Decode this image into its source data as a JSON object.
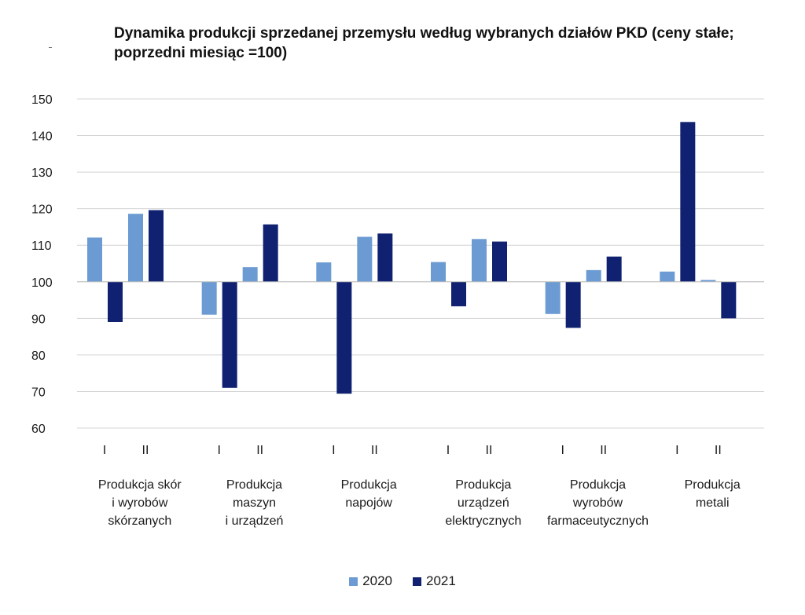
{
  "chart_data": {
    "type": "bar",
    "title": "Dynamika produkcji sprzedanej przemysłu według wybranych działów PKD (ceny stałe; poprzedni miesiąc =100)",
    "ylim": [
      60,
      150
    ],
    "yticks": [
      60,
      70,
      80,
      90,
      100,
      110,
      120,
      130,
      140,
      150
    ],
    "baseline": 100,
    "grid": true,
    "legend_position": "bottom-center",
    "groups": [
      {
        "label_lines": [
          "Produkcja skór",
          "i wyrobów",
          "skórzanych"
        ],
        "months": [
          "I",
          "II"
        ]
      },
      {
        "label_lines": [
          "Produkcja",
          "maszyn",
          "i urządzeń"
        ],
        "months": [
          "I",
          "II"
        ]
      },
      {
        "label_lines": [
          "Produkcja",
          "napojów"
        ],
        "months": [
          "I",
          "II"
        ]
      },
      {
        "label_lines": [
          "Produkcja",
          "urządzeń",
          "elektrycznych"
        ],
        "months": [
          "I",
          "II"
        ]
      },
      {
        "label_lines": [
          "Produkcja",
          "wyrobów",
          "farmaceutycznych"
        ],
        "months": [
          "I",
          "II"
        ]
      },
      {
        "label_lines": [
          "Produkcja",
          "metali"
        ],
        "months": [
          "I",
          "II"
        ]
      }
    ],
    "series": [
      {
        "name": "2020",
        "color": "#6b9bd2",
        "values": [
          [
            112.1,
            118.6
          ],
          [
            91.0,
            104.0
          ],
          [
            105.3,
            112.3
          ],
          [
            105.4,
            111.7
          ],
          [
            91.2,
            103.2
          ],
          [
            102.8,
            100.5
          ]
        ]
      },
      {
        "name": "2021",
        "color": "#0f2170",
        "values": [
          [
            89.0,
            119.6
          ],
          [
            71.0,
            115.7
          ],
          [
            69.4,
            113.2
          ],
          [
            93.3,
            111.0
          ],
          [
            87.4,
            106.9
          ],
          [
            143.7,
            90.0
          ]
        ]
      }
    ]
  }
}
